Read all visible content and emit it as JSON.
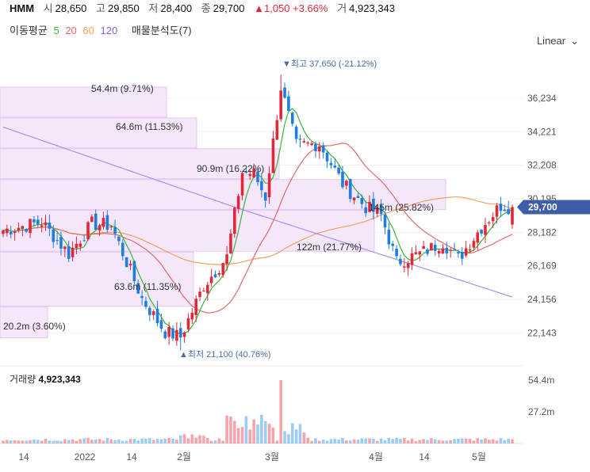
{
  "header": {
    "symbol": "HMM",
    "open_label": "시",
    "open": "28,650",
    "high_label": "고",
    "high": "29,850",
    "low_label": "저",
    "low": "28,400",
    "close_label": "종",
    "close": "29,700",
    "change": "▲1,050 +3.66%",
    "volume_label": "거",
    "volume": "4,923,343"
  },
  "indicators": {
    "label": "이동평균",
    "periods": [
      "5",
      "20",
      "60",
      "120"
    ],
    "volume_profile": "매물분석도(7)"
  },
  "scale": {
    "label": "Linear",
    "icon": "chevron-down-icon"
  },
  "colors": {
    "up": "#e0283a",
    "down": "#1e7ee0",
    "ma5": "#3ab53a",
    "ma20": "#e36a6a",
    "ma60": "#f0a060",
    "ma120": "#b08cf0",
    "profile": "#f3e4fa",
    "price_tag": "#3e5ea8"
  },
  "chart_data": {
    "type": "candlestick",
    "y_ticks": [
      "36,234",
      "34,221",
      "32,208",
      "30,195",
      "28,182",
      "26,169",
      "24,156",
      "22,143"
    ],
    "ylim": [
      20500,
      38800
    ],
    "x_labels": [
      "14",
      "2022",
      "14",
      "2월",
      "3월",
      "4월",
      "14",
      "5월"
    ],
    "current_price": "29,700",
    "high_annotation": "▼최고 37,650 (-21.12%)",
    "low_annotation": "▲최저 21,100 (40.76%)",
    "volume_profile": [
      {
        "label": "54.4m (9.71%)",
        "price_low": 35050,
        "price_high": 36900
      },
      {
        "label": "64.6m (11.53%)",
        "price_low": 33200,
        "price_high": 35050
      },
      {
        "label": "90.9m (16.22%)",
        "price_low": 31350,
        "price_high": 33200
      },
      {
        "label": "145m (25.82%)",
        "price_low": 29500,
        "price_high": 31350
      },
      {
        "label": "122m (21.77%)",
        "price_low": 27000,
        "price_high": 29500
      },
      {
        "label": "63.6m (11.35%)",
        "price_low": 23700,
        "price_high": 27000
      },
      {
        "label": "20.2m (3.60%)",
        "price_low": 21800,
        "price_high": 23700
      }
    ],
    "volume": {
      "title": "거래량",
      "value": "4,923,343",
      "ticks": [
        "54.4m",
        "27.2m"
      ],
      "max": 54.4
    }
  }
}
